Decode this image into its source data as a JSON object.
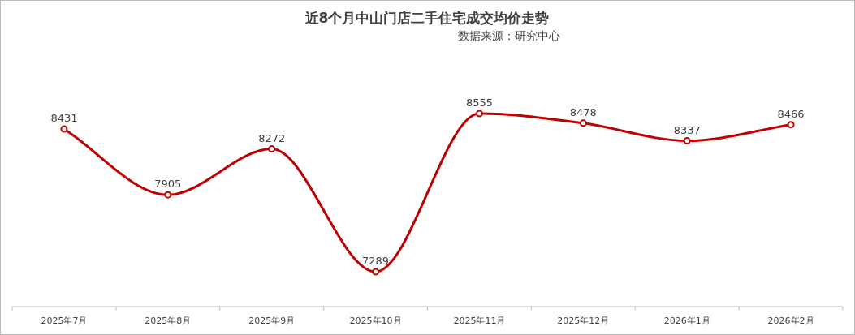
{
  "chart_data": {
    "type": "line",
    "title": "近8个月中山门店二手住宅成交均价走势",
    "subtitle": "数据来源：研究中心",
    "categories": [
      "2025年7月",
      "2025年8月",
      "2025年9月",
      "2025年10月",
      "2025年11月",
      "2025年12月",
      "2026年1月",
      "2026年2月"
    ],
    "series": [
      {
        "color": "#c00000",
        "values": [
          8431,
          7905,
          8272,
          7289,
          8555,
          8478,
          8337,
          8466
        ]
      }
    ],
    "relative": false,
    "data_labels": true,
    "marker": "circle",
    "line_style": "solid"
  }
}
